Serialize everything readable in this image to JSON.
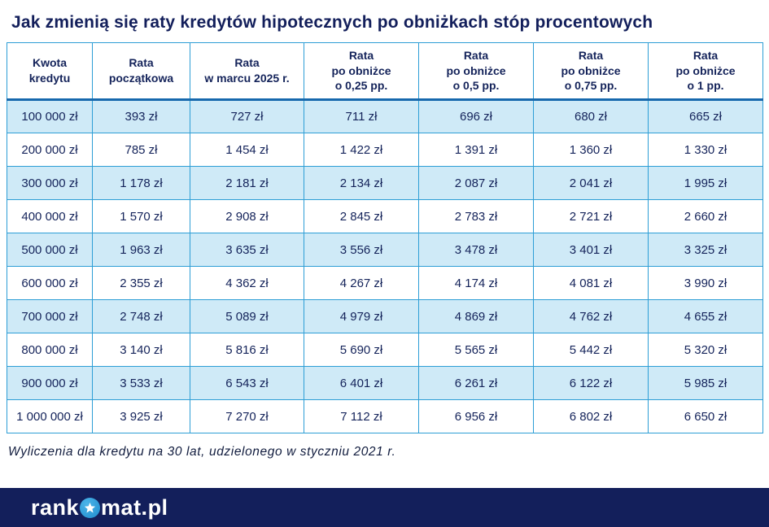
{
  "title": "Jak zmienią się raty kredytów hipotecznych po obniżkach stóp procentowych",
  "table": {
    "headers": [
      "Kwota\nkredytu",
      "Rata\npoczątkowa",
      "Rata\nw marcu 2025 r.",
      "Rata\npo obniżce\no 0,25 pp.",
      "Rata\npo obniżce\no 0,5 pp.",
      "Rata\npo obniżce\no 0,75 pp.",
      "Rata\npo obniżce\no 1 pp."
    ],
    "rows": [
      [
        "100 000 zł",
        "393 zł",
        "727 zł",
        "711 zł",
        "696 zł",
        "680 zł",
        "665 zł"
      ],
      [
        "200 000 zł",
        "785 zł",
        "1 454 zł",
        "1 422 zł",
        "1 391 zł",
        "1 360 zł",
        "1 330 zł"
      ],
      [
        "300 000 zł",
        "1 178 zł",
        "2 181 zł",
        "2 134 zł",
        "2 087 zł",
        "2 041 zł",
        "1 995 zł"
      ],
      [
        "400 000 zł",
        "1 570 zł",
        "2 908 zł",
        "2 845 zł",
        "2 783 zł",
        "2 721 zł",
        "2 660 zł"
      ],
      [
        "500 000 zł",
        "1 963 zł",
        "3 635 zł",
        "3 556 zł",
        "3 478 zł",
        "3 401 zł",
        "3 325 zł"
      ],
      [
        "600 000 zł",
        "2 355 zł",
        "4 362 zł",
        "4 267 zł",
        "4 174 zł",
        "4 081 zł",
        "3 990 zł"
      ],
      [
        "700 000 zł",
        "2 748 zł",
        "5 089 zł",
        "4 979 zł",
        "4 869 zł",
        "4 762 zł",
        "4 655 zł"
      ],
      [
        "800 000 zł",
        "3 140 zł",
        "5 816 zł",
        "5 690 zł",
        "5 565 zł",
        "5 442 zł",
        "5 320 zł"
      ],
      [
        "900 000 zł",
        "3 533 zł",
        "6 543 zł",
        "6 401 zł",
        "6 261 zł",
        "6 122 zł",
        "5 985 zł"
      ],
      [
        "1 000 000 zł",
        "3 925 zł",
        "7 270 zł",
        "7 112 zł",
        "6 956 zł",
        "6 802 zł",
        "6 650 zł"
      ]
    ]
  },
  "footnote": "Wyliczenia dla kredytu na 30 lat, udzielonego w styczniu 2021 r.",
  "footer": {
    "brand_prefix": "rank",
    "brand_suffix": "mat.pl",
    "star_icon": "star-in-circle"
  },
  "colors": {
    "navy": "#131f5b",
    "row_alt_blue": "#cfeaf7",
    "grid_blue": "#2d9ed6",
    "header_rule_blue": "#1668ad",
    "logo_star_circle": "#2b9cd8",
    "text": "#14235a"
  },
  "chart_data": {
    "type": "table",
    "title": "Jak zmienią się raty kredytów hipotecznych po obniżkach stóp procentowych",
    "columns": [
      "Kwota kredytu",
      "Rata początkowa",
      "Rata w marcu 2025 r.",
      "Rata po obniżce o 0,25 pp.",
      "Rata po obniżce o 0,5 pp.",
      "Rata po obniżce o 0,75 pp.",
      "Rata po obniżce o 1 pp."
    ],
    "unit": "zł",
    "rows": [
      [
        100000,
        393,
        727,
        711,
        696,
        680,
        665
      ],
      [
        200000,
        785,
        1454,
        1422,
        1391,
        1360,
        1330
      ],
      [
        300000,
        1178,
        2181,
        2134,
        2087,
        2041,
        1995
      ],
      [
        400000,
        1570,
        2908,
        2845,
        2783,
        2721,
        2660
      ],
      [
        500000,
        1963,
        3635,
        3556,
        3478,
        3401,
        3325
      ],
      [
        600000,
        2355,
        4362,
        4267,
        4174,
        4081,
        3990
      ],
      [
        700000,
        2748,
        5089,
        4979,
        4869,
        4762,
        4655
      ],
      [
        800000,
        3140,
        5816,
        5690,
        5565,
        5442,
        5320
      ],
      [
        900000,
        3533,
        6543,
        6401,
        6261,
        6122,
        5985
      ],
      [
        1000000,
        3925,
        7270,
        7112,
        6956,
        6802,
        6650
      ]
    ],
    "footnote": "Wyliczenia dla kredytu na 30 lat, udzielonego w styczniu 2021 r."
  }
}
